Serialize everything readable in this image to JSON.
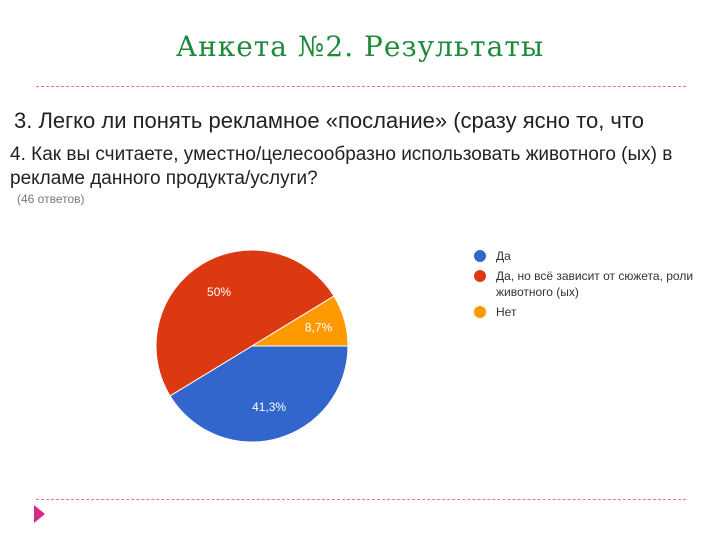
{
  "slide": {
    "title": "Анкета №2. Результаты",
    "question3": "3. Легко ли понять рекламное «послание» (сразу ясно то, что",
    "question4": "4. Как вы считаете, уместно/целесообразно использовать животного (ых) в рекламе данного продукта/услуги?",
    "responses": "(46 ответов)"
  },
  "chart_data": {
    "type": "pie",
    "title": "",
    "slices": [
      {
        "label": "Да",
        "value": 41.3,
        "display": "41,3%",
        "color": "#3366cc"
      },
      {
        "label": "Да, но всё зависит от сюжета, роли животного (ых)",
        "value": 50,
        "display": "50%",
        "color": "#dc3912"
      },
      {
        "label": "Нет",
        "value": 8.7,
        "display": "8,7%",
        "color": "#ff9900"
      }
    ],
    "legend_position": "right"
  }
}
